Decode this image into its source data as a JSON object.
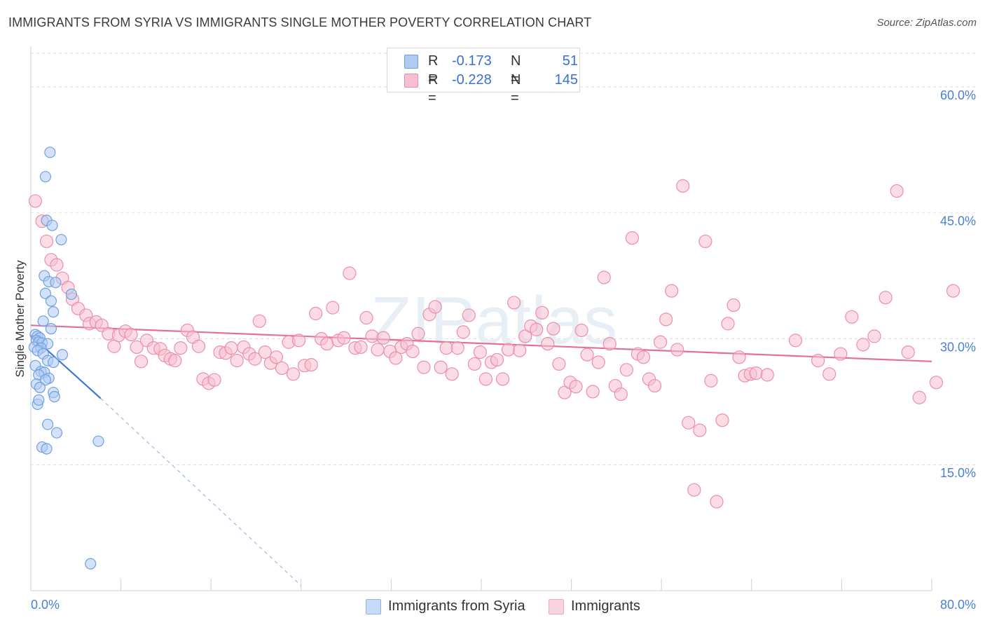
{
  "header": {
    "title": "IMMIGRANTS FROM SYRIA VS IMMIGRANTS SINGLE MOTHER POVERTY CORRELATION CHART",
    "source": "Source: ZipAtlas.com"
  },
  "legend": {
    "rows": [
      {
        "r_label": "R =",
        "r_value": "-0.173",
        "n_label": "N =",
        "n_value": "51"
      },
      {
        "r_label": "R =",
        "r_value": "-0.228",
        "n_label": "N =",
        "n_value": "145"
      }
    ]
  },
  "colors": {
    "syria_fill": "#aecbf2",
    "syria_stroke": "#6f9fe0",
    "syria_line": "#3a78d8",
    "immigrants_fill": "#f7bfd0",
    "immigrants_stroke": "#ec8eab",
    "immigrants_line": "#e3709a",
    "axis_text": "#4a7fd6",
    "grid": "#dddddd"
  },
  "watermark": "ZIPatlas",
  "chart_data": {
    "type": "scatter",
    "title": "IMMIGRANTS FROM SYRIA VS IMMIGRANTS SINGLE MOTHER POVERTY CORRELATION CHART",
    "xlabel": "",
    "ylabel": "Single Mother Poverty",
    "xlim": [
      0,
      80
    ],
    "ylim": [
      0,
      64
    ],
    "x_tick_labels": [
      "0.0%",
      "80.0%"
    ],
    "y_ticks": [
      15,
      30,
      45,
      60
    ],
    "y_tick_labels": [
      "15.0%",
      "30.0%",
      "45.0%",
      "60.0%"
    ],
    "grid": true,
    "legend_position": "bottom",
    "series": [
      {
        "name": "Immigrants from Syria",
        "points": [
          [
            1.7,
            52.2
          ],
          [
            1.3,
            49.3
          ],
          [
            1.4,
            44.1
          ],
          [
            1.9,
            43.5
          ],
          [
            2.7,
            41.8
          ],
          [
            1.2,
            37.5
          ],
          [
            1.6,
            36.8
          ],
          [
            2.2,
            36.7
          ],
          [
            1.3,
            35.4
          ],
          [
            3.6,
            35.3
          ],
          [
            1.8,
            34.5
          ],
          [
            2.0,
            33.2
          ],
          [
            1.1,
            32.1
          ],
          [
            1.8,
            31.2
          ],
          [
            0.4,
            30.5
          ],
          [
            0.6,
            30.3
          ],
          [
            0.8,
            30.1
          ],
          [
            0.5,
            29.8
          ],
          [
            0.7,
            29.6
          ],
          [
            1.0,
            29.5
          ],
          [
            1.5,
            29.4
          ],
          [
            0.3,
            29.0
          ],
          [
            0.9,
            28.9
          ],
          [
            0.6,
            28.6
          ],
          [
            1.1,
            28.2
          ],
          [
            2.8,
            28.1
          ],
          [
            1.5,
            27.4
          ],
          [
            2.0,
            27.2
          ],
          [
            0.4,
            26.8
          ],
          [
            0.9,
            26.1
          ],
          [
            1.2,
            26.0
          ],
          [
            0.7,
            25.7
          ],
          [
            1.6,
            25.3
          ],
          [
            1.3,
            25.1
          ],
          [
            0.5,
            24.6
          ],
          [
            0.8,
            24.2
          ],
          [
            2.0,
            23.6
          ],
          [
            2.1,
            23.1
          ],
          [
            0.6,
            22.2
          ],
          [
            0.7,
            22.7
          ],
          [
            1.5,
            19.8
          ],
          [
            2.3,
            18.8
          ],
          [
            6.0,
            17.8
          ],
          [
            1.0,
            17.1
          ],
          [
            1.4,
            16.9
          ],
          [
            5.3,
            3.2
          ]
        ],
        "trend": {
          "x": [
            0,
            6.2
          ],
          "y": [
            30.4,
            22.9
          ]
        },
        "trend_extension": {
          "x": [
            6.2,
            24
          ],
          "y": [
            22.9,
            0.6
          ]
        }
      },
      {
        "name": "Immigrants",
        "points": [
          [
            0.4,
            46.4
          ],
          [
            1.0,
            44.0
          ],
          [
            1.4,
            41.6
          ],
          [
            1.8,
            39.4
          ],
          [
            2.3,
            38.8
          ],
          [
            2.8,
            37.2
          ],
          [
            3.3,
            36.1
          ],
          [
            3.7,
            34.7
          ],
          [
            4.2,
            33.6
          ],
          [
            4.9,
            32.8
          ],
          [
            5.2,
            31.8
          ],
          [
            5.8,
            32.0
          ],
          [
            6.3,
            31.6
          ],
          [
            6.9,
            30.6
          ],
          [
            7.4,
            29.1
          ],
          [
            7.8,
            30.4
          ],
          [
            8.4,
            30.9
          ],
          [
            8.9,
            30.5
          ],
          [
            9.4,
            29.0
          ],
          [
            9.8,
            27.3
          ],
          [
            10.3,
            29.8
          ],
          [
            10.9,
            28.9
          ],
          [
            11.5,
            28.8
          ],
          [
            11.9,
            28.0
          ],
          [
            12.4,
            27.6
          ],
          [
            12.8,
            27.4
          ],
          [
            13.3,
            28.9
          ],
          [
            13.9,
            31.0
          ],
          [
            14.4,
            30.2
          ],
          [
            14.9,
            29.1
          ],
          [
            15.3,
            25.2
          ],
          [
            15.8,
            24.7
          ],
          [
            16.3,
            25.1
          ],
          [
            16.8,
            28.4
          ],
          [
            17.3,
            28.3
          ],
          [
            17.8,
            28.9
          ],
          [
            18.3,
            27.4
          ],
          [
            18.9,
            29.0
          ],
          [
            19.4,
            28.2
          ],
          [
            19.9,
            27.6
          ],
          [
            20.3,
            32.1
          ],
          [
            20.8,
            28.4
          ],
          [
            21.3,
            27.1
          ],
          [
            21.8,
            27.8
          ],
          [
            22.3,
            26.5
          ],
          [
            22.9,
            29.6
          ],
          [
            23.3,
            25.8
          ],
          [
            23.8,
            29.8
          ],
          [
            24.3,
            26.8
          ],
          [
            24.9,
            26.9
          ],
          [
            25.3,
            33.0
          ],
          [
            25.8,
            30.0
          ],
          [
            26.3,
            29.4
          ],
          [
            26.8,
            33.7
          ],
          [
            27.3,
            29.8
          ],
          [
            27.8,
            30.1
          ],
          [
            28.3,
            37.8
          ],
          [
            28.8,
            28.9
          ],
          [
            29.3,
            29.0
          ],
          [
            29.8,
            32.5
          ],
          [
            30.3,
            30.3
          ],
          [
            30.8,
            28.7
          ],
          [
            31.3,
            30.1
          ],
          [
            31.9,
            28.5
          ],
          [
            32.4,
            27.7
          ],
          [
            32.9,
            29.0
          ],
          [
            33.4,
            29.4
          ],
          [
            33.9,
            28.5
          ],
          [
            34.4,
            30.6
          ],
          [
            34.9,
            26.6
          ],
          [
            35.4,
            32.9
          ],
          [
            35.9,
            33.8
          ],
          [
            36.4,
            26.6
          ],
          [
            36.9,
            28.9
          ],
          [
            37.4,
            25.8
          ],
          [
            37.9,
            28.9
          ],
          [
            38.4,
            30.8
          ],
          [
            38.9,
            32.8
          ],
          [
            39.4,
            27.0
          ],
          [
            39.9,
            28.4
          ],
          [
            40.4,
            25.2
          ],
          [
            40.9,
            27.2
          ],
          [
            41.4,
            27.5
          ],
          [
            41.9,
            25.2
          ],
          [
            42.4,
            28.7
          ],
          [
            42.9,
            34.3
          ],
          [
            43.4,
            28.6
          ],
          [
            43.9,
            30.3
          ],
          [
            44.4,
            31.5
          ],
          [
            44.9,
            31.1
          ],
          [
            45.4,
            33.1
          ],
          [
            45.9,
            29.4
          ],
          [
            46.4,
            31.2
          ],
          [
            46.9,
            27.0
          ],
          [
            47.4,
            23.6
          ],
          [
            47.9,
            24.8
          ],
          [
            48.4,
            24.3
          ],
          [
            48.9,
            31.0
          ],
          [
            49.4,
            28.1
          ],
          [
            49.9,
            23.7
          ],
          [
            50.4,
            27.2
          ],
          [
            50.9,
            37.3
          ],
          [
            51.4,
            29.4
          ],
          [
            51.9,
            24.4
          ],
          [
            52.4,
            23.4
          ],
          [
            52.9,
            26.3
          ],
          [
            53.4,
            42.0
          ],
          [
            53.9,
            28.2
          ],
          [
            54.4,
            27.8
          ],
          [
            54.9,
            25.2
          ],
          [
            55.4,
            24.4
          ],
          [
            55.9,
            29.6
          ],
          [
            56.4,
            32.3
          ],
          [
            56.9,
            35.7
          ],
          [
            57.4,
            28.7
          ],
          [
            57.9,
            48.2
          ],
          [
            58.4,
            20.0
          ],
          [
            58.9,
            12.0
          ],
          [
            59.4,
            19.1
          ],
          [
            59.9,
            41.6
          ],
          [
            60.4,
            25.0
          ],
          [
            60.9,
            10.6
          ],
          [
            61.4,
            20.3
          ],
          [
            61.9,
            31.8
          ],
          [
            62.4,
            34.0
          ],
          [
            62.9,
            27.8
          ],
          [
            63.4,
            25.6
          ],
          [
            63.9,
            25.8
          ],
          [
            64.4,
            25.9
          ],
          [
            65.4,
            25.7
          ],
          [
            67.9,
            29.8
          ],
          [
            69.9,
            27.4
          ],
          [
            70.9,
            25.8
          ],
          [
            71.9,
            28.2
          ],
          [
            72.9,
            32.6
          ],
          [
            73.9,
            29.3
          ],
          [
            74.9,
            30.3
          ],
          [
            75.9,
            34.9
          ],
          [
            76.9,
            47.6
          ],
          [
            77.9,
            28.4
          ],
          [
            78.9,
            23.0
          ],
          [
            80.4,
            24.8
          ],
          [
            81.9,
            35.7
          ]
        ],
        "trend": {
          "x": [
            0,
            80
          ],
          "y": [
            31.6,
            27.3
          ]
        }
      }
    ]
  }
}
